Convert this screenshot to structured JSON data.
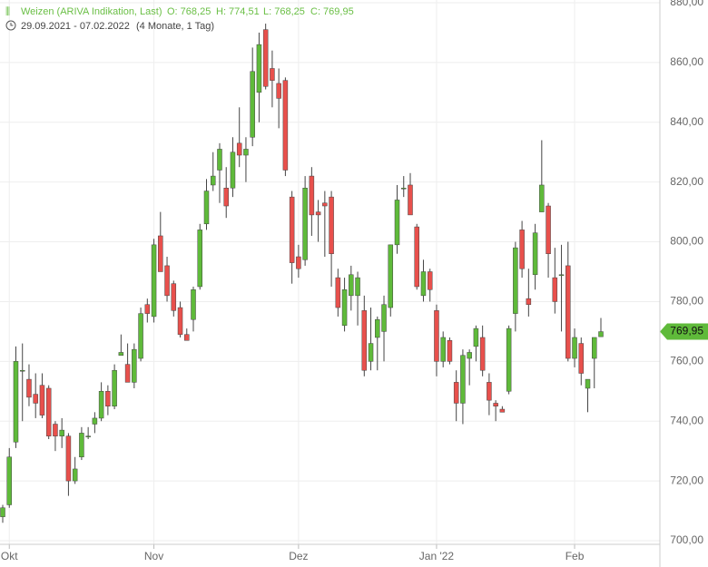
{
  "chart_data": {
    "type": "candlestick",
    "title": "Weizen (ARIVA Indikation, Last)",
    "ohlc_labels": [
      "O: 768,25",
      "H: 774,51",
      "L: 768,25",
      "C: 769,95"
    ],
    "range_label": "29.09.2021 - 07.02.2022",
    "period_label": "(4 Monate, 1 Tag)",
    "up_color": "#5fba3a",
    "down_color": "#e8504c",
    "grid": true,
    "ylim": [
      696,
      882
    ],
    "yticks": [
      {
        "value": 700,
        "label": "700,00"
      },
      {
        "value": 720,
        "label": "720,00"
      },
      {
        "value": 740,
        "label": "740,00"
      },
      {
        "value": 760,
        "label": "760,00"
      },
      {
        "value": 780,
        "label": "780,00"
      },
      {
        "value": 800,
        "label": "800,00"
      },
      {
        "value": 820,
        "label": "820,00"
      },
      {
        "value": 840,
        "label": "840,00"
      },
      {
        "value": 860,
        "label": "860,00"
      },
      {
        "value": 880,
        "label": "880,00"
      }
    ],
    "last": {
      "value": 769.95,
      "label": "769,95"
    },
    "categories": [
      null,
      "Okt",
      null,
      null,
      null,
      null,
      null,
      null,
      null,
      null,
      null,
      null,
      null,
      null,
      null,
      null,
      null,
      null,
      null,
      null,
      null,
      null,
      null,
      "Nov",
      null,
      null,
      null,
      null,
      null,
      null,
      null,
      null,
      null,
      null,
      null,
      null,
      null,
      null,
      null,
      null,
      null,
      null,
      null,
      null,
      null,
      "Dez",
      null,
      null,
      null,
      null,
      null,
      null,
      null,
      null,
      null,
      null,
      null,
      null,
      null,
      null,
      null,
      null,
      null,
      null,
      null,
      null,
      "Jan '22",
      null,
      null,
      null,
      null,
      null,
      null,
      null,
      null,
      null,
      null,
      null,
      null,
      null,
      null,
      null,
      null,
      null,
      null,
      null,
      null,
      "Feb",
      null,
      null,
      null,
      null
    ],
    "open": [
      708,
      712,
      733,
      757,
      754,
      749,
      752,
      751,
      739,
      735,
      735,
      720,
      728,
      735,
      739,
      741,
      750,
      745,
      762,
      759,
      753,
      761,
      779,
      775,
      802,
      792,
      786,
      778,
      769,
      774,
      785,
      806,
      819,
      824,
      818,
      818,
      833,
      829,
      835,
      850,
      871,
      858,
      853,
      854,
      815,
      795,
      794,
      822,
      810,
      813,
      815,
      788,
      772,
      782,
      782,
      777,
      760,
      768,
      770,
      778,
      799,
      818,
      819,
      805,
      782,
      790,
      777,
      760,
      767,
      753,
      746,
      761,
      765,
      768,
      753,
      746,
      744,
      750,
      776,
      804,
      781,
      789,
      810,
      812,
      788,
      789,
      792,
      761,
      766,
      751,
      761,
      768.25
    ],
    "high": [
      712,
      731,
      765,
      766,
      759,
      756,
      756,
      752,
      740,
      741,
      736,
      728,
      738,
      738,
      743,
      753,
      752,
      759,
      769,
      766,
      766,
      778,
      781,
      801,
      810,
      795,
      787,
      780,
      771,
      785,
      806,
      821,
      830,
      833,
      825,
      835,
      845,
      835,
      865,
      870,
      873,
      864,
      858,
      855,
      817,
      799,
      822,
      825,
      814,
      817,
      817,
      791,
      788,
      792,
      790,
      782,
      778,
      775,
      782,
      799,
      819,
      822,
      823,
      806,
      794,
      791,
      779,
      770,
      768,
      757,
      764,
      764,
      772,
      772,
      756,
      747,
      745,
      772,
      800,
      807,
      791,
      806,
      834,
      813,
      798,
      799,
      800,
      771,
      768,
      754,
      768,
      774.51
    ],
    "low": [
      706,
      711,
      731,
      740,
      745,
      741,
      741,
      734,
      730,
      731,
      715,
      719,
      727,
      734,
      736,
      740,
      742,
      744,
      762,
      754,
      751,
      760,
      773,
      773,
      790,
      780,
      775,
      768,
      767,
      770,
      784,
      804,
      817,
      813,
      808,
      815,
      825,
      820,
      832,
      840,
      851,
      845,
      838,
      822,
      786,
      788,
      792,
      802,
      800,
      795,
      785,
      775,
      770,
      777,
      772,
      755,
      757,
      757,
      760,
      775,
      796,
      815,
      810,
      784,
      780,
      780,
      755,
      758,
      759,
      740,
      739,
      752,
      760,
      755,
      742,
      740,
      743,
      749,
      770,
      788,
      775,
      784,
      810,
      788,
      776,
      770,
      760,
      758,
      752,
      743,
      751,
      768.25
    ],
    "close": [
      711,
      728,
      760,
      757,
      748,
      746,
      742,
      735,
      735,
      737,
      720,
      724,
      736,
      735,
      741,
      750,
      745,
      757,
      763,
      753,
      764,
      776,
      776,
      799,
      790,
      782,
      777,
      769,
      767,
      784,
      804,
      817,
      822,
      831,
      812,
      830,
      829,
      831,
      857,
      866,
      852,
      854,
      848,
      824,
      793,
      791,
      818,
      809,
      809,
      812,
      796,
      778,
      784,
      789,
      788,
      757,
      766,
      774,
      779,
      799,
      814,
      818,
      809,
      785,
      790,
      784,
      760,
      768,
      760,
      746,
      762,
      763,
      771,
      757,
      747,
      745,
      743,
      771,
      798,
      791,
      779,
      803,
      819,
      796,
      780,
      789,
      761,
      768,
      756,
      754,
      768,
      769.95
    ]
  }
}
